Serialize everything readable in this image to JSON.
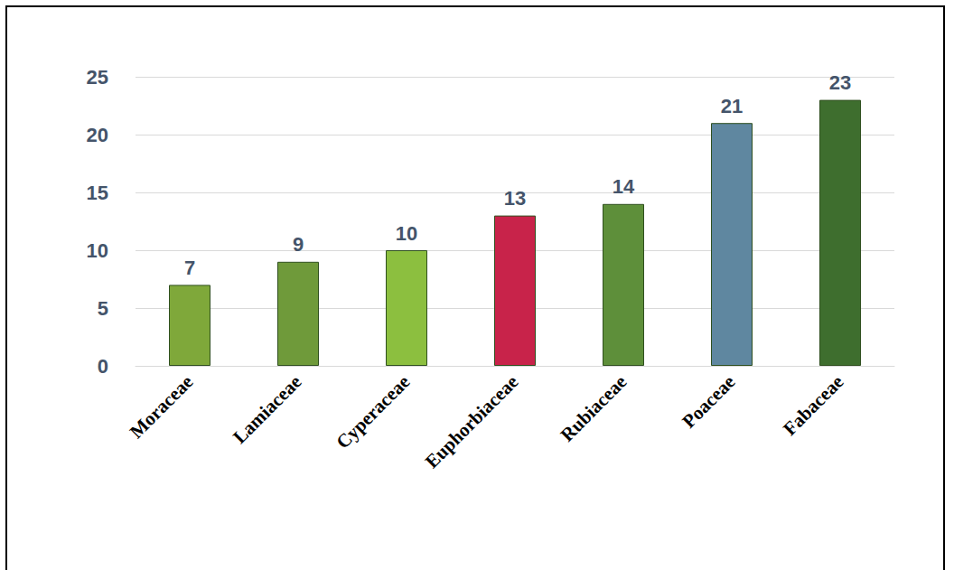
{
  "chart_data": {
    "type": "bar",
    "categories": [
      "Moraceae",
      "Lamiaceae",
      "Cyperaceae",
      "Euphorbiaceae",
      "Rubiaceae",
      "Poaceae",
      "Fabaceae"
    ],
    "values": [
      7,
      9,
      10,
      13,
      14,
      21,
      23
    ],
    "colors": [
      "#7fa83a",
      "#6f9a3a",
      "#8cbf3f",
      "#c8234a",
      "#5e8f3a",
      "#5f87a0",
      "#3e6e2e"
    ],
    "ylim": [
      0,
      25
    ],
    "yticks": [
      0,
      5,
      10,
      15,
      20,
      25
    ],
    "grid": true,
    "data_labels": true
  }
}
